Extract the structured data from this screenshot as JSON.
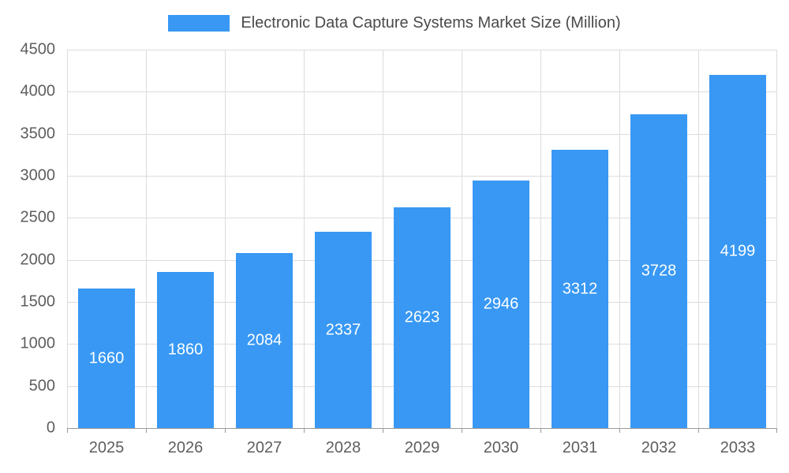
{
  "chart_data": {
    "type": "bar",
    "title": "Electronic Data Capture Systems Market Size (Million)",
    "categories": [
      "2025",
      "2026",
      "2027",
      "2028",
      "2029",
      "2030",
      "2031",
      "2032",
      "2033"
    ],
    "values": [
      1660,
      1860,
      2084,
      2337,
      2623,
      2946,
      3312,
      3728,
      4199
    ],
    "xlabel": "",
    "ylabel": "",
    "ylim": [
      0,
      4500
    ],
    "y_tick_step": 500,
    "grid": true,
    "legend_position": "top",
    "bar_color": "#3898f4",
    "value_label_color": "#ffffff",
    "axis_text_color": "#5e5e5e",
    "gridline_color": "#dcdcdc"
  },
  "legend": {
    "swatch_color": "#3898f4"
  }
}
